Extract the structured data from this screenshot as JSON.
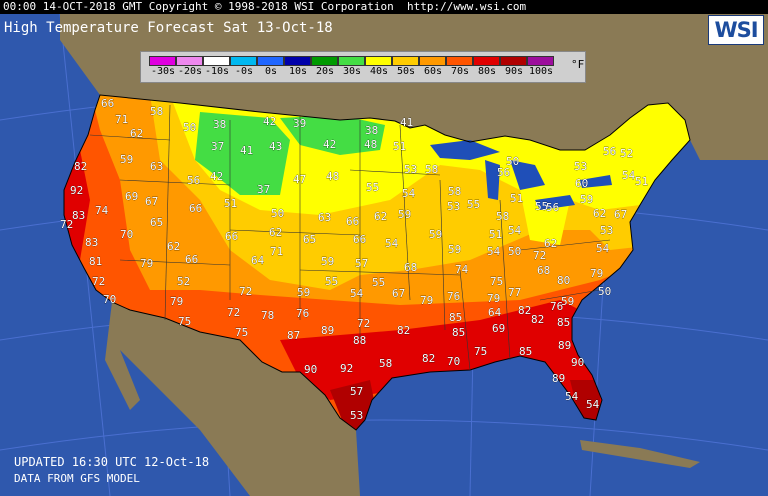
{
  "header": {
    "banner": "00:00 14-OCT-2018 GMT Copyright © 1998-2018 WSI Corporation  http://www.wsi.com",
    "title": "High Temperature Forecast  Sat 13-Oct-18",
    "logo": "WSI"
  },
  "legend": {
    "unit": "°F",
    "bins": [
      {
        "label": "-30s",
        "color": "#e000e0"
      },
      {
        "label": "-20s",
        "color": "#ee88ee"
      },
      {
        "label": "-10s",
        "color": "#ffffff"
      },
      {
        "label": "-0s",
        "color": "#00b8f0"
      },
      {
        "label": "0s",
        "color": "#1f66ff"
      },
      {
        "label": "10s",
        "color": "#0000aa"
      },
      {
        "label": "20s",
        "color": "#009a00"
      },
      {
        "label": "30s",
        "color": "#44dd44"
      },
      {
        "label": "40s",
        "color": "#ffff00"
      },
      {
        "label": "50s",
        "color": "#ffcc00"
      },
      {
        "label": "60s",
        "color": "#ff9900"
      },
      {
        "label": "70s",
        "color": "#ff5500"
      },
      {
        "label": "80s",
        "color": "#e00000"
      },
      {
        "label": "90s",
        "color": "#b00000"
      },
      {
        "label": "100s",
        "color": "#9c0d9c"
      }
    ]
  },
  "map_colors": {
    "ocean": "#2f58ad",
    "land": "#8a7a55",
    "lakes": "#1f4fb8",
    "t30s": "#44dd44",
    "t40s": "#ffff00",
    "t50s": "#ffcc00",
    "t60s": "#ff9900",
    "t70s": "#ff5500",
    "t80s": "#e00000",
    "t90s": "#b00000"
  },
  "temperatures": [
    66,
    71,
    58,
    62,
    59,
    63,
    82,
    92,
    83,
    72,
    83,
    81,
    72,
    70,
    74,
    69,
    67,
    70,
    65,
    79,
    62,
    66,
    52,
    79,
    75,
    50,
    38,
    42,
    39,
    37,
    41,
    43,
    42,
    48,
    41,
    38,
    56,
    42,
    51,
    37,
    47,
    48,
    51,
    66,
    66,
    50,
    62,
    71,
    64,
    72,
    72,
    78,
    75,
    63,
    66,
    62,
    65,
    66,
    59,
    59,
    57,
    54,
    55,
    55,
    54,
    59,
    67,
    76,
    72,
    82,
    89,
    87,
    88,
    90,
    92,
    58,
    57,
    53,
    55,
    54,
    53,
    58,
    58,
    53,
    59,
    59,
    68,
    74,
    79,
    76,
    85,
    85,
    82,
    70,
    75,
    79,
    64,
    69,
    75,
    77,
    82,
    82,
    85,
    85,
    89,
    90,
    89,
    54,
    54,
    55,
    58,
    54,
    51,
    54,
    50,
    50,
    56,
    51,
    55,
    56,
    62,
    72,
    68,
    80,
    79,
    76,
    59,
    50,
    59,
    60,
    62,
    67,
    53,
    54,
    53,
    56,
    54,
    52,
    51
  ],
  "footer": {
    "updated": "UPDATED 16:30 UTC 12-Oct-18",
    "source": "DATA FROM GFS MODEL"
  }
}
